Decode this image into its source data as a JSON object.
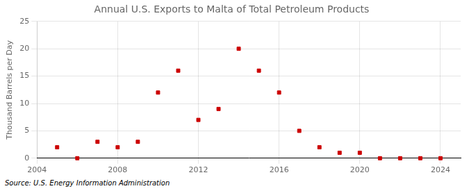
{
  "chart_data": {
    "type": "scatter",
    "title": "Annual U.S. Exports to Malta of Total Petroleum Products",
    "ylabel": "Thousand Barrels per Day",
    "source": "Source: U.S. Energy Information Administration",
    "x": [
      2005,
      2006,
      2007,
      2008,
      2009,
      2010,
      2011,
      2012,
      2013,
      2014,
      2015,
      2016,
      2017,
      2018,
      2019,
      2020,
      2021,
      2022,
      2023,
      2024
    ],
    "values": [
      2,
      0,
      3,
      2,
      3,
      12,
      16,
      7,
      9,
      20,
      16,
      12,
      5,
      2,
      1,
      1,
      0,
      0,
      0,
      0
    ],
    "color": "#cc0000",
    "marker": "square",
    "xlim": [
      2004,
      2025
    ],
    "ylim": [
      0,
      25
    ],
    "xticks": [
      2004,
      2008,
      2012,
      2016,
      2020,
      2024
    ],
    "yticks": [
      0,
      5,
      10,
      15,
      20,
      25
    ],
    "grid": true
  }
}
